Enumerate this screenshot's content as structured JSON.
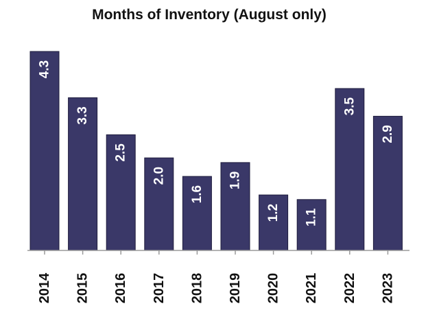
{
  "chart_data": {
    "type": "bar",
    "title": "Months of Inventory (August only)",
    "xlabel": "",
    "ylabel": "",
    "categories": [
      "2014",
      "2015",
      "2016",
      "2017",
      "2018",
      "2019",
      "2020",
      "2021",
      "2022",
      "2023"
    ],
    "values": [
      4.3,
      3.3,
      2.5,
      2.0,
      1.6,
      1.9,
      1.2,
      1.1,
      3.5,
      2.9
    ],
    "value_labels": [
      "4.3",
      "3.3",
      "2.5",
      "2.0",
      "1.6",
      "1.9",
      "1.2",
      "1.1",
      "3.5",
      "2.9"
    ],
    "ylim": [
      0,
      4.3
    ],
    "grid": false,
    "legend": "none",
    "bar_color": "#3a3868",
    "inside_label_color": "#ffffff",
    "outside_label_color": "#111111"
  }
}
